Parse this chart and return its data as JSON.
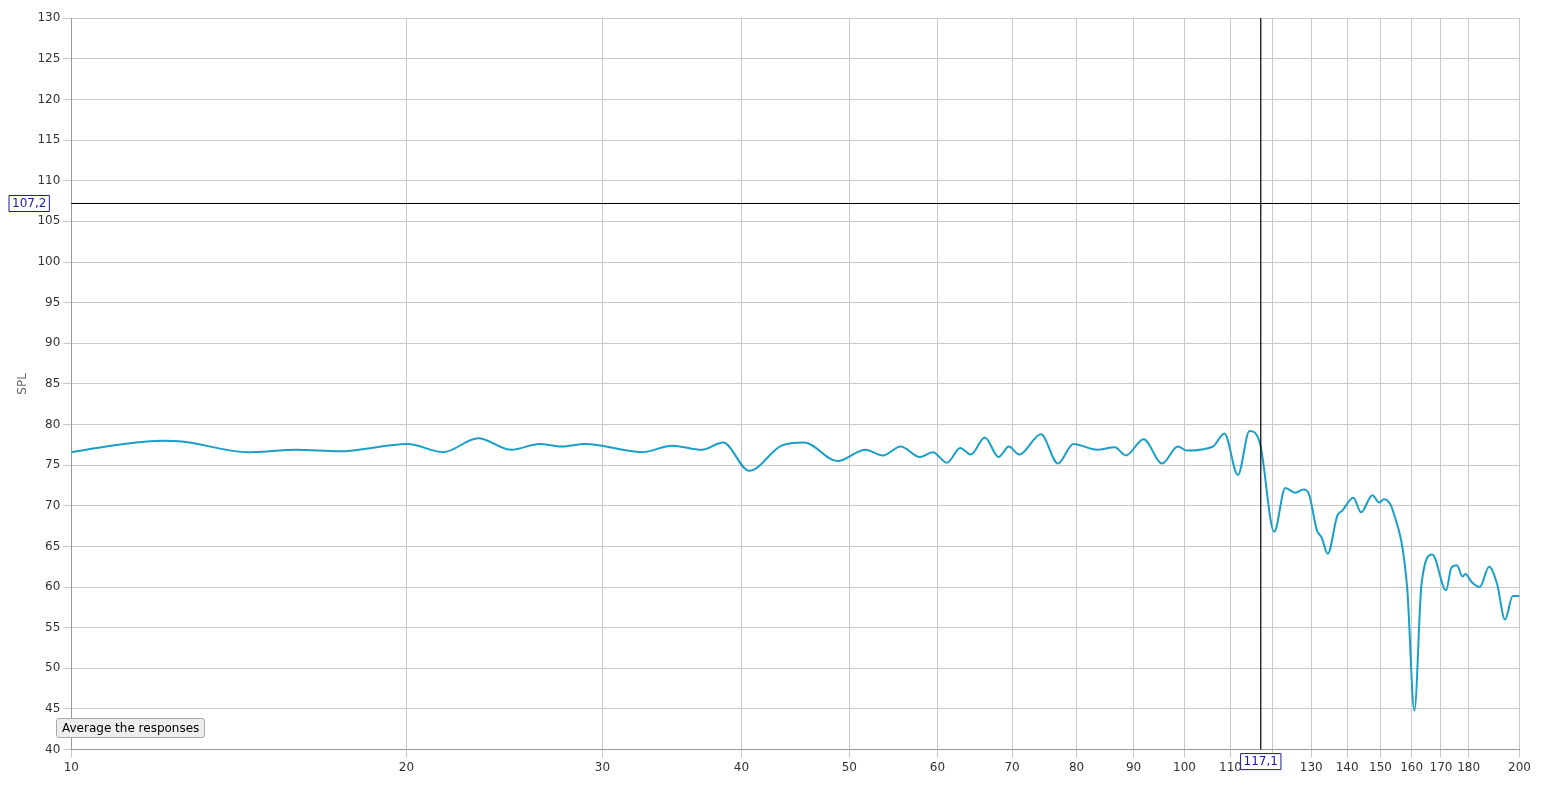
{
  "chart_data": {
    "type": "line",
    "ylabel": "SPL",
    "annotations": [
      "Average the responses"
    ],
    "log": "x",
    "grid": true,
    "legend": false,
    "marker": "none",
    "line_style": "solid",
    "xlim": [
      10,
      200
    ],
    "xticks": [
      10,
      20,
      30,
      40,
      50,
      60,
      70,
      80,
      90,
      100,
      110,
      {
        "value": 120,
        "label": null
      },
      130,
      140,
      150,
      160,
      170,
      180,
      200
    ],
    "ylim": [
      40,
      130
    ],
    "yticks": [
      40,
      45,
      50,
      55,
      60,
      65,
      70,
      75,
      80,
      85,
      90,
      95,
      100,
      105,
      110,
      115,
      120,
      125,
      130
    ],
    "ref_lines": [
      {
        "axis": "x",
        "value": 117.1,
        "label": "117,1",
        "color": "#000000"
      },
      {
        "axis": "y",
        "value": 107.2,
        "label": "107,2",
        "color": "#000000"
      }
    ],
    "series": [
      {
        "color": "#1a9fc9",
        "x": [
          10,
          10.86,
          12.09,
          12.58,
          14.43,
          15.92,
          17.39,
          20.06,
          21.58,
          23.2,
          24.85,
          26.35,
          27.57,
          28.95,
          32.57,
          34.67,
          36.85,
          38.51,
          40.64,
          43.45,
          45.53,
          48.78,
          51.69,
          53.59,
          55.59,
          57.85,
          59.43,
          61.18,
          62.88,
          64.28,
          66.17,
          68.08,
          69.54,
          71.06,
          74.32,
          76.97,
          79.46,
          83.48,
          86.57,
          88.61,
          91.89,
          95.49,
          98.63,
          100.5,
          106.1,
          108.6,
          111.7,
          114.4,
          116.9,
          120.4,
          123.2,
          125.8,
          127.9,
          129.4,
          131.5,
          132.8,
          134.5,
          137.2,
          138.6,
          141.8,
          144.1,
          147.5,
          149.6,
          151.1,
          153.9,
          158.5,
          160.9,
          163.3,
          167,
          171.8,
          173.7,
          175.7,
          177.7,
          178.8,
          181.2,
          184.2,
          187.8,
          190.9,
          194.1,
          197.2,
          200
        ],
        "values": [
          76.6,
          77.4,
          78,
          77.9,
          76.6,
          76.9,
          76.7,
          77.6,
          76.6,
          78.3,
          76.9,
          77.6,
          77.3,
          77.6,
          76.6,
          77.4,
          76.9,
          77.8,
          74.3,
          77.4,
          77.8,
          75.5,
          76.9,
          76.2,
          77.3,
          76,
          76.6,
          75.3,
          77.1,
          76.3,
          78.4,
          76,
          77.3,
          76.3,
          78.8,
          75.2,
          77.6,
          76.9,
          77.2,
          76.2,
          78.2,
          75.2,
          77.3,
          76.8,
          77.3,
          78.9,
          73.8,
          79.2,
          77.7,
          66.8,
          72.2,
          71.6,
          72,
          71.4,
          67,
          66.1,
          64.1,
          68.8,
          69.4,
          71,
          69.2,
          71.3,
          70.4,
          70.8,
          69.4,
          60,
          44.8,
          60.4,
          64,
          59.6,
          62.4,
          62.7,
          61.3,
          61.6,
          60.6,
          60,
          62.5,
          60.4,
          56,
          58.9,
          58.9
        ]
      }
    ]
  }
}
